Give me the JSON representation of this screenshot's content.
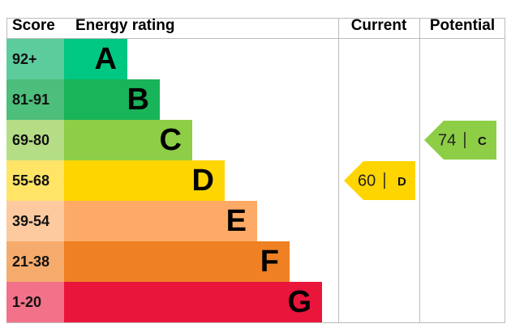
{
  "headers": {
    "score": "Score",
    "rating": "Energy rating",
    "current": "Current",
    "potential": "Potential"
  },
  "bands": [
    {
      "score": "92+",
      "rating": "A",
      "color": "#00c781",
      "score_color": "#5dcc9d"
    },
    {
      "score": "81-91",
      "rating": "B",
      "color": "#19b459",
      "score_color": "#4dbe7b"
    },
    {
      "score": "69-80",
      "rating": "C",
      "color": "#8dce46",
      "score_color": "#b5dd85"
    },
    {
      "score": "55-68",
      "rating": "D",
      "color": "#ffd500",
      "score_color": "#ffe466"
    },
    {
      "score": "39-54",
      "rating": "E",
      "color": "#fcaa65",
      "score_color": "#fdcaa0"
    },
    {
      "score": "21-38",
      "rating": "F",
      "color": "#ef8023",
      "score_color": "#f5ab6b"
    },
    {
      "score": "1-20",
      "rating": "G",
      "color": "#e9153b",
      "score_color": "#f27289"
    }
  ],
  "current": {
    "value": 60,
    "rating": "D"
  },
  "potential": {
    "value": 74,
    "rating": "C"
  }
}
